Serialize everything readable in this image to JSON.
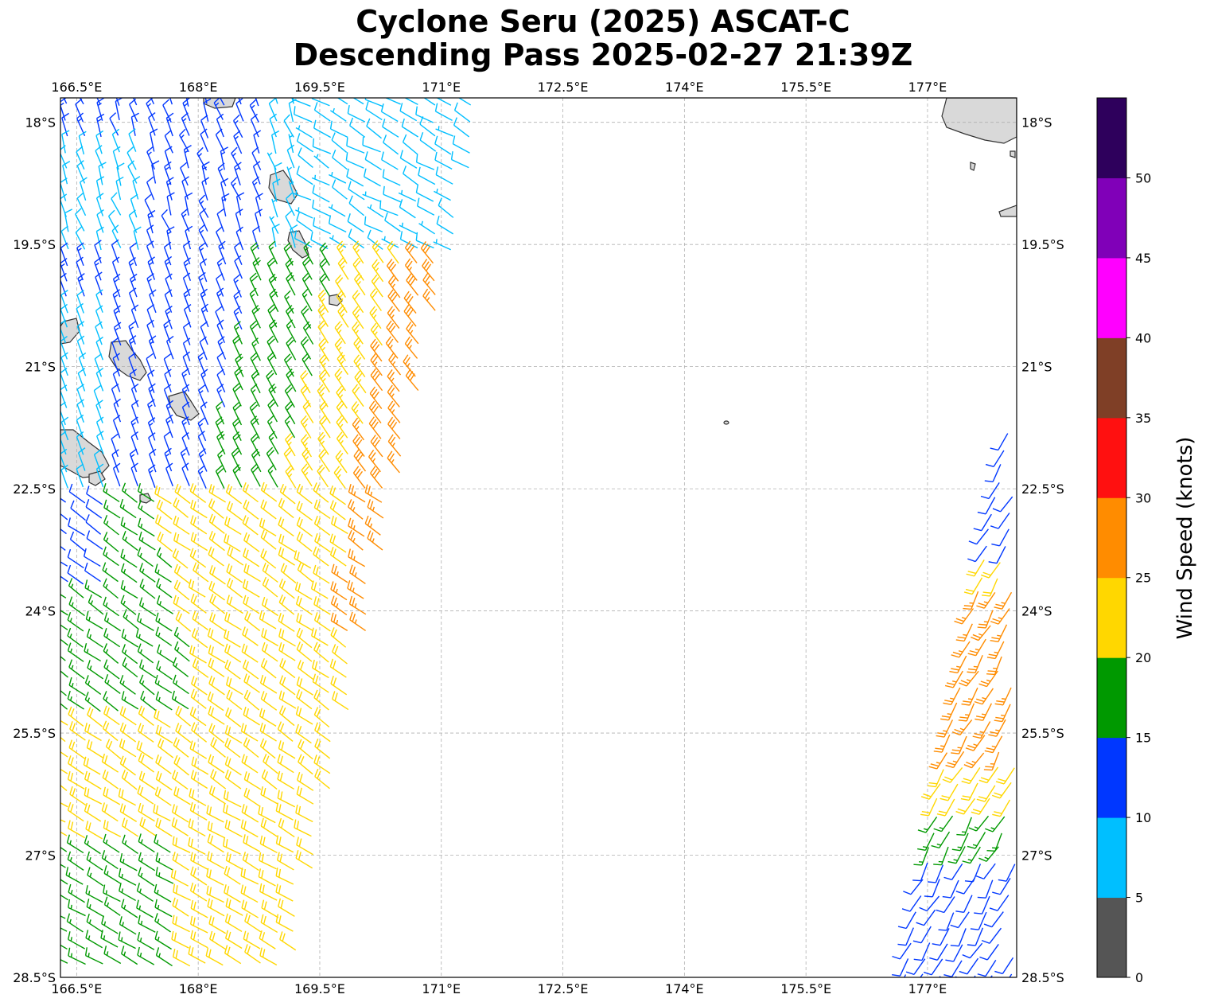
{
  "title": {
    "line1": "Cyclone Seru (2025) ASCAT-C",
    "line2": "Descending Pass 2025-02-27 21:39Z"
  },
  "colorbar": {
    "label": "Wind Speed (knots)",
    "ticks": [
      "0",
      "5",
      "10",
      "15",
      "20",
      "25",
      "30",
      "35",
      "40",
      "45",
      "50"
    ],
    "bins": [
      {
        "min": 0,
        "max": 5,
        "color": "#555555"
      },
      {
        "min": 5,
        "max": 10,
        "color": "#00bfff"
      },
      {
        "min": 10,
        "max": 15,
        "color": "#0037ff"
      },
      {
        "min": 15,
        "max": 20,
        "color": "#009900"
      },
      {
        "min": 20,
        "max": 25,
        "color": "#ffd700"
      },
      {
        "min": 25,
        "max": 30,
        "color": "#ff8c00"
      },
      {
        "min": 30,
        "max": 35,
        "color": "#ff1010"
      },
      {
        "min": 35,
        "max": 40,
        "color": "#7f3f26"
      },
      {
        "min": 40,
        "max": 45,
        "color": "#ff00ff"
      },
      {
        "min": 45,
        "max": 50,
        "color": "#8000b8"
      },
      {
        "min": 50,
        "max": 55,
        "color": "#2e005c"
      }
    ]
  },
  "map": {
    "lon_range": [
      166.3,
      178.1
    ],
    "lat_range": [
      -28.5,
      -17.7
    ],
    "lon_labels": [
      "166.5°E",
      "168°E",
      "169.5°E",
      "171°E",
      "172.5°E",
      "174°E",
      "175.5°E",
      "177°E"
    ],
    "lon_values": [
      166.5,
      168,
      169.5,
      171,
      172.5,
      174,
      175.5,
      177
    ],
    "lat_labels": [
      "18°S",
      "19.5°S",
      "21°S",
      "22.5°S",
      "24°S",
      "25.5°S",
      "27°S",
      "28.5°S"
    ],
    "lat_values": [
      -18,
      -19.5,
      -21,
      -22.5,
      -24,
      -25.5,
      -27,
      -28.5
    ],
    "gridlines": true,
    "land_color": "#d9d9d9",
    "coast_color": "#333333"
  }
}
